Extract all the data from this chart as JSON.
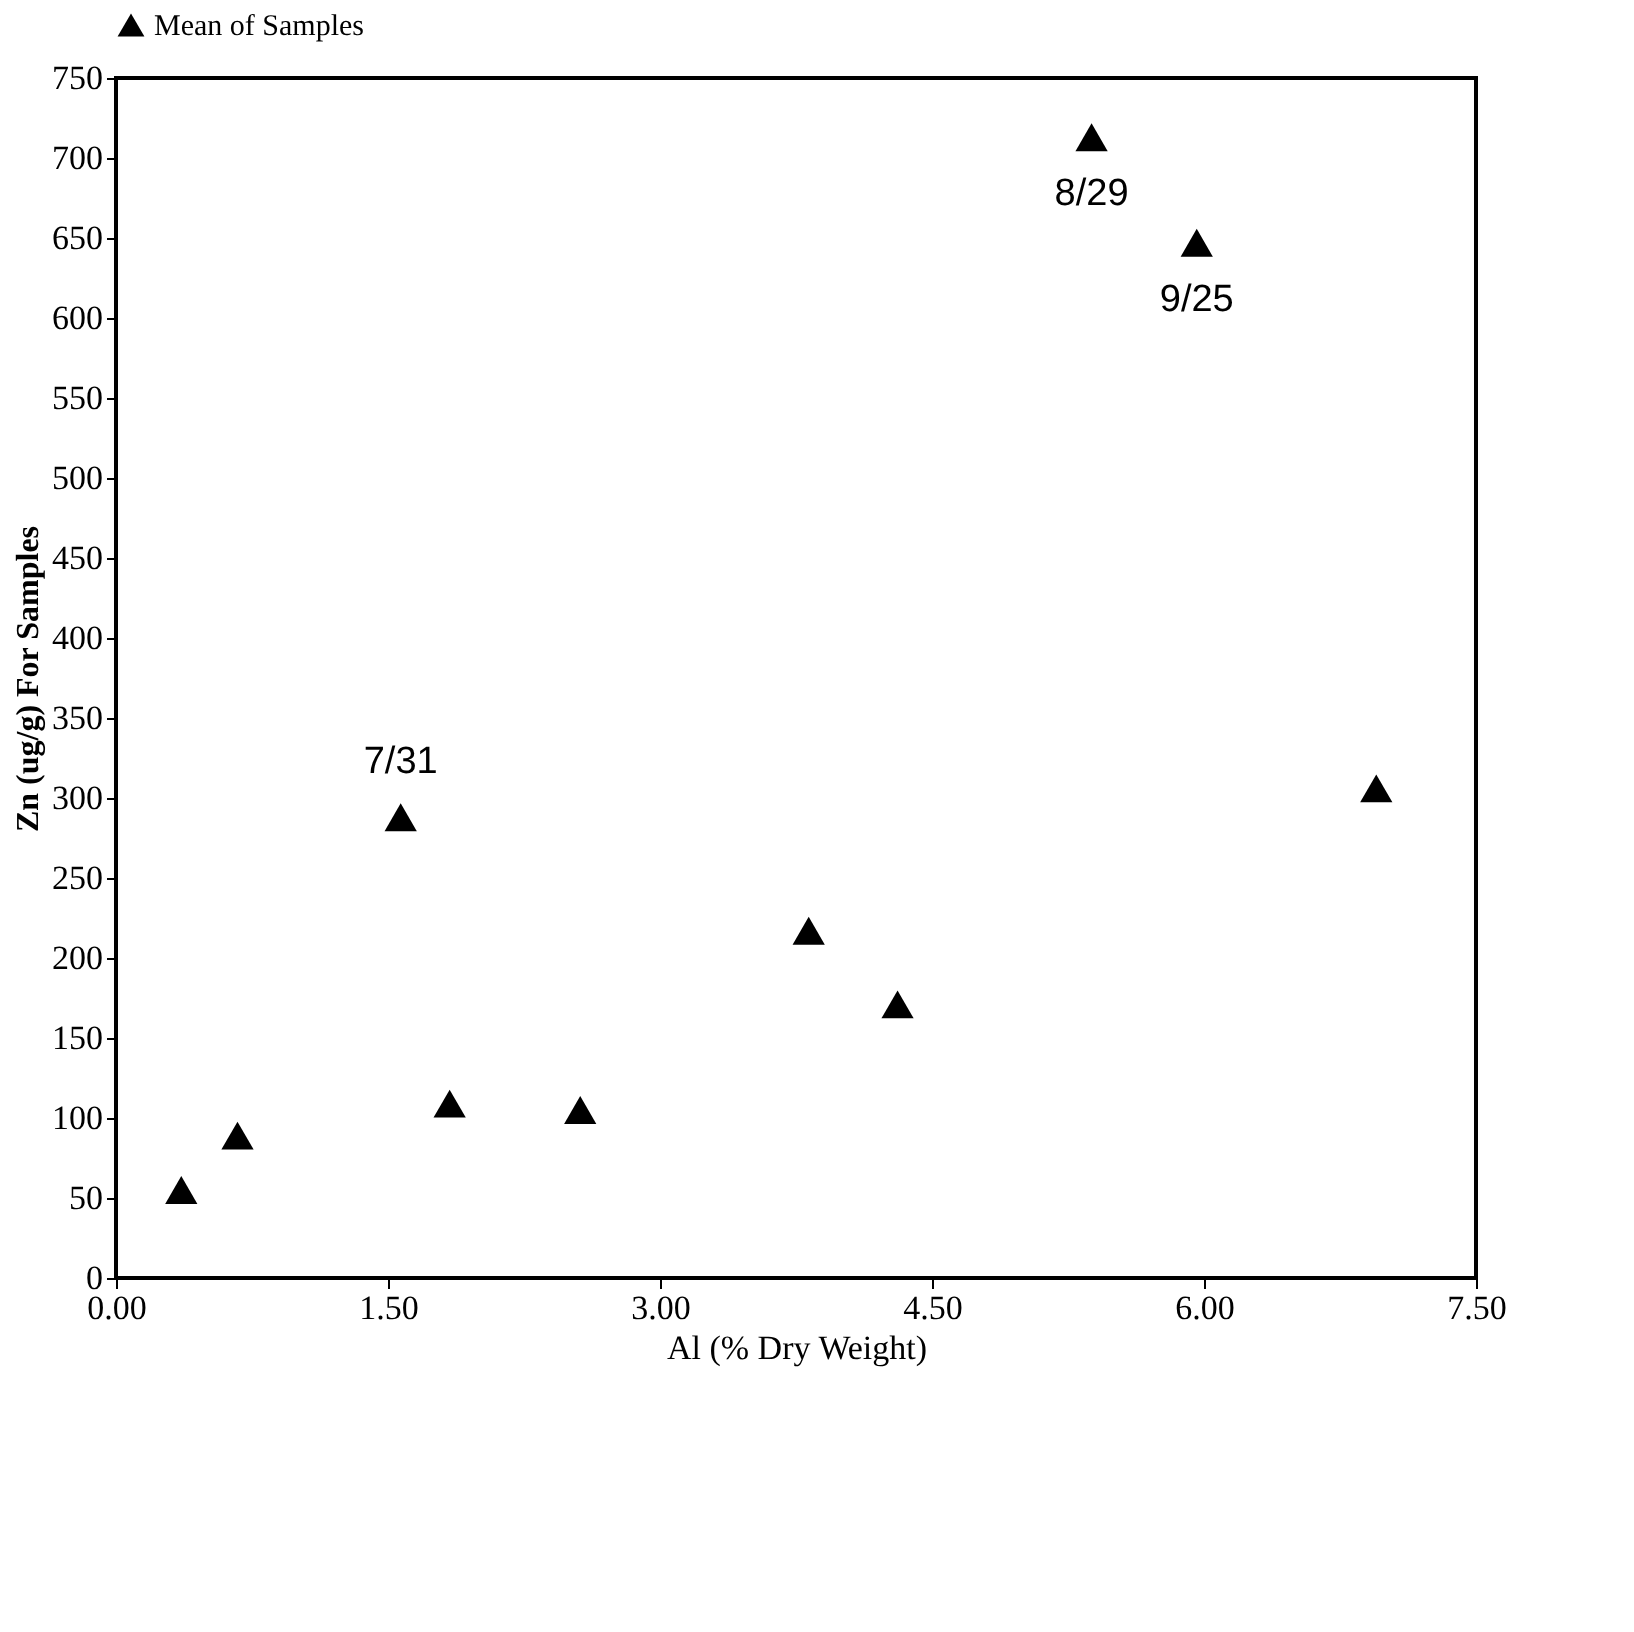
{
  "chart_data": {
    "type": "scatter",
    "xlabel": "Al (% Dry Weight)",
    "ylabel": "Zn (ug/g) For Samples",
    "x": [
      0.36,
      0.67,
      1.57,
      1.84,
      2.56,
      3.82,
      4.31,
      5.38,
      5.96,
      6.95
    ],
    "series": [
      {
        "name": "Mean of Samples",
        "color": "#000000",
        "values": [
          55,
          89,
          288,
          109,
          105,
          217,
          171,
          713,
          647,
          306
        ]
      }
    ],
    "marker": "triangle",
    "legend": "top left",
    "grid": false,
    "xlim": [
      0,
      7.5
    ],
    "xticks": [
      {
        "value": 0,
        "label": "0.00"
      },
      {
        "value": 1.5,
        "label": "1.50"
      },
      {
        "value": 3,
        "label": "3.00"
      },
      {
        "value": 4.5,
        "label": "4.50"
      },
      {
        "value": 6,
        "label": "6.00"
      },
      {
        "value": 7.5,
        "label": "7.50"
      }
    ],
    "ylim": [
      0,
      750
    ],
    "yticks": [
      0,
      50,
      100,
      150,
      200,
      250,
      300,
      350,
      400,
      450,
      500,
      550,
      600,
      650,
      700,
      750
    ],
    "annotations": [
      {
        "text": "7/31",
        "x": 1.57,
        "y": 288
      },
      {
        "text": "8/29",
        "x": 5.38,
        "y": 713
      },
      {
        "text": "9/25",
        "x": 5.96,
        "y": 647
      }
    ]
  }
}
